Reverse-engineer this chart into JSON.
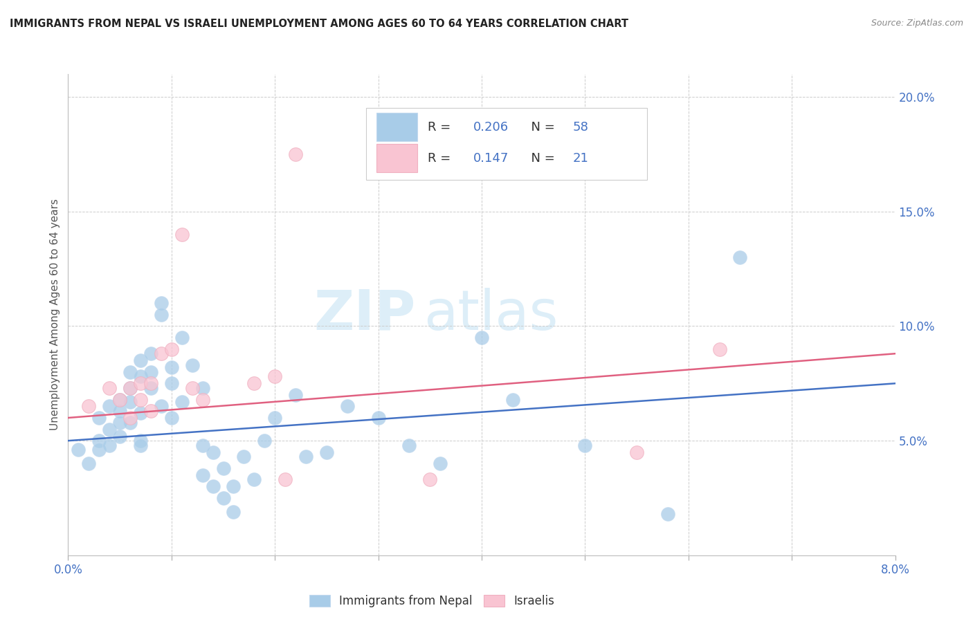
{
  "title": "IMMIGRANTS FROM NEPAL VS ISRAELI UNEMPLOYMENT AMONG AGES 60 TO 64 YEARS CORRELATION CHART",
  "source": "Source: ZipAtlas.com",
  "ylabel": "Unemployment Among Ages 60 to 64 years",
  "xlim": [
    0.0,
    0.08
  ],
  "ylim": [
    0.0,
    0.21
  ],
  "legend1_R": "0.206",
  "legend1_N": "58",
  "legend2_R": "0.147",
  "legend2_N": "21",
  "blue_color": "#a8cce8",
  "pink_color": "#f9c4d2",
  "blue_line_color": "#4472c4",
  "pink_line_color": "#e06080",
  "blue_text_color": "#4472c4",
  "watermark_zip": "ZIP",
  "watermark_atlas": "atlas",
  "nepal_x": [
    0.001,
    0.002,
    0.003,
    0.003,
    0.003,
    0.004,
    0.004,
    0.004,
    0.005,
    0.005,
    0.005,
    0.005,
    0.006,
    0.006,
    0.006,
    0.006,
    0.007,
    0.007,
    0.007,
    0.007,
    0.007,
    0.008,
    0.008,
    0.008,
    0.009,
    0.009,
    0.009,
    0.01,
    0.01,
    0.01,
    0.011,
    0.011,
    0.012,
    0.013,
    0.013,
    0.013,
    0.014,
    0.014,
    0.015,
    0.015,
    0.016,
    0.016,
    0.017,
    0.018,
    0.019,
    0.02,
    0.022,
    0.023,
    0.025,
    0.027,
    0.03,
    0.033,
    0.036,
    0.04,
    0.043,
    0.05,
    0.058,
    0.065
  ],
  "nepal_y": [
    0.046,
    0.04,
    0.06,
    0.05,
    0.046,
    0.065,
    0.055,
    0.048,
    0.068,
    0.063,
    0.058,
    0.052,
    0.08,
    0.073,
    0.067,
    0.058,
    0.085,
    0.078,
    0.062,
    0.05,
    0.048,
    0.088,
    0.08,
    0.073,
    0.11,
    0.105,
    0.065,
    0.082,
    0.075,
    0.06,
    0.095,
    0.067,
    0.083,
    0.073,
    0.048,
    0.035,
    0.045,
    0.03,
    0.038,
    0.025,
    0.03,
    0.019,
    0.043,
    0.033,
    0.05,
    0.06,
    0.07,
    0.043,
    0.045,
    0.065,
    0.06,
    0.048,
    0.04,
    0.095,
    0.068,
    0.048,
    0.018,
    0.13
  ],
  "israeli_x": [
    0.002,
    0.004,
    0.005,
    0.006,
    0.006,
    0.007,
    0.007,
    0.008,
    0.008,
    0.009,
    0.01,
    0.011,
    0.012,
    0.013,
    0.018,
    0.02,
    0.021,
    0.022,
    0.035,
    0.055,
    0.063
  ],
  "israeli_y": [
    0.065,
    0.073,
    0.068,
    0.073,
    0.06,
    0.075,
    0.068,
    0.075,
    0.063,
    0.088,
    0.09,
    0.14,
    0.073,
    0.068,
    0.075,
    0.078,
    0.033,
    0.175,
    0.033,
    0.045,
    0.09
  ],
  "nepal_trend_x": [
    0.0,
    0.08
  ],
  "nepal_trend_y": [
    0.05,
    0.075
  ],
  "israeli_trend_x": [
    0.0,
    0.08
  ],
  "israeli_trend_y": [
    0.06,
    0.088
  ]
}
